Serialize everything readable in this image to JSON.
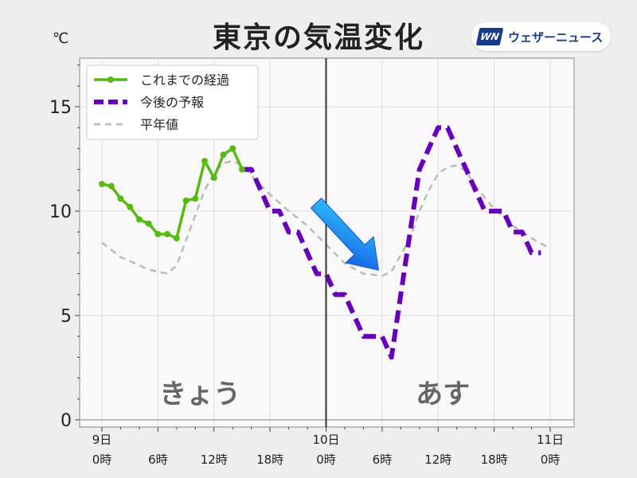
{
  "header": {
    "title": "東京の気温変化",
    "unit": "℃",
    "logo_mark": "WN",
    "logo_text": "ウェザーニュース"
  },
  "chart_data": {
    "type": "line",
    "title": "東京の気温変化",
    "ylabel": "℃",
    "ylim": [
      0,
      17
    ],
    "yticks": [
      0,
      5,
      10,
      15
    ],
    "xlim": [
      -1,
      48
    ],
    "x_tick_labels": [
      {
        "x": 0,
        "line1": "9日",
        "line2": "0時"
      },
      {
        "x": 6,
        "line1": "",
        "line2": "6時"
      },
      {
        "x": 12,
        "line1": "",
        "line2": "12時"
      },
      {
        "x": 18,
        "line1": "",
        "line2": "18時"
      },
      {
        "x": 24,
        "line1": "10日",
        "line2": "0時"
      },
      {
        "x": 30,
        "line1": "",
        "line2": "6時"
      },
      {
        "x": 36,
        "line1": "",
        "line2": "12時"
      },
      {
        "x": 42,
        "line1": "",
        "line2": "18時"
      },
      {
        "x": 48,
        "line1": "11日",
        "line2": "0時"
      }
    ],
    "grid": true,
    "legend_position": "top-left",
    "divider_x": 24,
    "period_labels": [
      {
        "text": "きょう",
        "x": 10.5,
        "y": 0.8
      },
      {
        "text": "あす",
        "x": 36.5,
        "y": 0.8
      }
    ],
    "series": [
      {
        "name": "これまでの経過",
        "color": "#55bb11",
        "style": "solid-markers",
        "points": [
          [
            0,
            11.3
          ],
          [
            1,
            11.2
          ],
          [
            2,
            10.6
          ],
          [
            3,
            10.2
          ],
          [
            4,
            9.6
          ],
          [
            5,
            9.4
          ],
          [
            6,
            8.9
          ],
          [
            7,
            8.9
          ],
          [
            8,
            8.7
          ],
          [
            9,
            10.5
          ],
          [
            10,
            10.6
          ],
          [
            11,
            12.4
          ],
          [
            12,
            11.6
          ],
          [
            13,
            12.7
          ],
          [
            14,
            13.0
          ],
          [
            15,
            12.0
          ]
        ]
      },
      {
        "name": "今後の予報",
        "color": "#6600bb",
        "style": "dashed-step",
        "points": [
          [
            15,
            12
          ],
          [
            16,
            12
          ],
          [
            17,
            11
          ],
          [
            18,
            10
          ],
          [
            19,
            10
          ],
          [
            20,
            9
          ],
          [
            21,
            9
          ],
          [
            22,
            8
          ],
          [
            23,
            7
          ],
          [
            24,
            7
          ],
          [
            25,
            6
          ],
          [
            26,
            6
          ],
          [
            27,
            5
          ],
          [
            28,
            4
          ],
          [
            29,
            4
          ],
          [
            30,
            4
          ],
          [
            31,
            3
          ],
          [
            32,
            6
          ],
          [
            33,
            9
          ],
          [
            34,
            12
          ],
          [
            35,
            13
          ],
          [
            36,
            14
          ],
          [
            37,
            14
          ],
          [
            38,
            13
          ],
          [
            39,
            12
          ],
          [
            40,
            11
          ],
          [
            41,
            10
          ],
          [
            42,
            10
          ],
          [
            43,
            10
          ],
          [
            44,
            9
          ],
          [
            45,
            9
          ],
          [
            46,
            8
          ],
          [
            47,
            8
          ]
        ]
      },
      {
        "name": "平年値",
        "color": "#bbbbbb",
        "style": "thin-dashed",
        "points": [
          [
            0,
            8.5
          ],
          [
            2,
            7.8
          ],
          [
            4,
            7.4
          ],
          [
            5,
            7.2
          ],
          [
            6,
            7.1
          ],
          [
            7,
            7.0
          ],
          [
            8,
            7.4
          ],
          [
            9,
            8.6
          ],
          [
            10,
            9.8
          ],
          [
            11,
            11.0
          ],
          [
            12,
            11.8
          ],
          [
            13,
            12.3
          ],
          [
            14,
            12.4
          ],
          [
            15,
            12.2
          ],
          [
            16,
            11.7
          ],
          [
            18,
            10.8
          ],
          [
            20,
            10.0
          ],
          [
            22,
            9.3
          ],
          [
            24,
            8.4
          ],
          [
            26,
            7.5
          ],
          [
            28,
            7.0
          ],
          [
            30,
            6.9
          ],
          [
            31,
            7.1
          ],
          [
            33,
            8.7
          ],
          [
            34,
            10.0
          ],
          [
            35,
            11.0
          ],
          [
            36,
            11.8
          ],
          [
            37,
            12.1
          ],
          [
            38,
            12.2
          ],
          [
            39,
            11.9
          ],
          [
            40,
            11.2
          ],
          [
            42,
            10.1
          ],
          [
            44,
            9.3
          ],
          [
            46,
            8.7
          ],
          [
            48,
            8.2
          ]
        ]
      }
    ]
  }
}
